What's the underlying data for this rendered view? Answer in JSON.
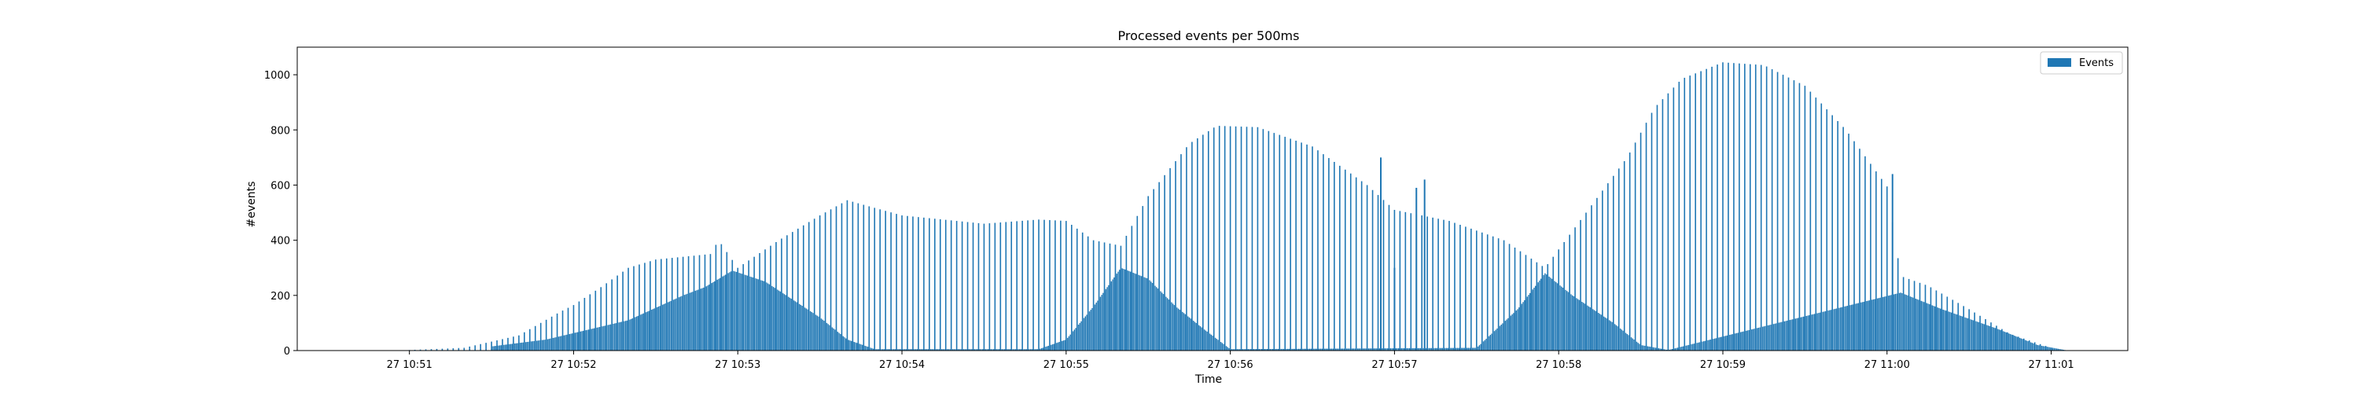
{
  "chart_data": {
    "type": "bar",
    "title": "Processed events per 500ms",
    "xlabel": "Time",
    "ylabel": "#events",
    "ylim": [
      0,
      1100
    ],
    "xlim": [
      "10:50:19",
      "11:01:28"
    ],
    "yticks": [
      0,
      200,
      400,
      600,
      800,
      1000
    ],
    "xticks": [
      {
        "value": "10:51:00",
        "label": "27 10:51"
      },
      {
        "value": "10:52:00",
        "label": "27 10:52"
      },
      {
        "value": "10:53:00",
        "label": "27 10:53"
      },
      {
        "value": "10:54:00",
        "label": "27 10:54"
      },
      {
        "value": "10:55:00",
        "label": "27 10:55"
      },
      {
        "value": "10:56:00",
        "label": "27 10:56"
      },
      {
        "value": "10:57:00",
        "label": "27 10:57"
      },
      {
        "value": "10:58:00",
        "label": "27 10:58"
      },
      {
        "value": "10:59:00",
        "label": "27 10:59"
      },
      {
        "value": "11:00:00",
        "label": "27 11:00"
      },
      {
        "value": "11:01:00",
        "label": "27 11:01"
      }
    ],
    "legend": {
      "placement": "upper-right",
      "entries": [
        "Events"
      ]
    },
    "grid": false,
    "color": "#1f77b4",
    "series": [
      {
        "name": "Events",
        "bar_interval_seconds": 2,
        "outline_points": [
          [
            "10:51:00",
            2
          ],
          [
            "10:51:20",
            10
          ],
          [
            "10:51:40",
            55
          ],
          [
            "10:51:55",
            140
          ],
          [
            "10:52:00",
            165
          ],
          [
            "10:52:10",
            230
          ],
          [
            "10:52:20",
            300
          ],
          [
            "10:52:30",
            330
          ],
          [
            "10:52:40",
            340
          ],
          [
            "10:52:50",
            350
          ],
          [
            "10:52:53",
            400
          ],
          [
            "10:53:00",
            300
          ],
          [
            "10:53:15",
            400
          ],
          [
            "10:53:30",
            490
          ],
          [
            "10:53:40",
            545
          ],
          [
            "10:54:00",
            490
          ],
          [
            "10:54:30",
            460
          ],
          [
            "10:54:50",
            475
          ],
          [
            "10:55:00",
            470
          ],
          [
            "10:55:10",
            400
          ],
          [
            "10:55:20",
            380
          ],
          [
            "10:55:30",
            560
          ],
          [
            "10:55:45",
            750
          ],
          [
            "10:55:55",
            815
          ],
          [
            "10:56:10",
            810
          ],
          [
            "10:56:30",
            740
          ],
          [
            "10:56:50",
            600
          ],
          [
            "10:57:00",
            510
          ],
          [
            "10:57:20",
            470
          ],
          [
            "10:57:40",
            400
          ],
          [
            "10:57:55",
            300
          ],
          [
            "10:58:10",
            500
          ],
          [
            "10:58:25",
            700
          ],
          [
            "10:58:35",
            880
          ],
          [
            "10:58:45",
            985
          ],
          [
            "10:59:00",
            1045
          ],
          [
            "10:59:15",
            1035
          ],
          [
            "10:59:30",
            960
          ],
          [
            "10:59:45",
            800
          ],
          [
            "11:00:00",
            595
          ],
          [
            "11:00:05",
            270
          ],
          [
            "11:00:15",
            235
          ],
          [
            "11:00:30",
            150
          ],
          [
            "11:00:45",
            60
          ],
          [
            "11:01:00",
            10
          ]
        ],
        "solid_points": [
          [
            "10:51:30",
            15
          ],
          [
            "10:51:50",
            40
          ],
          [
            "10:52:20",
            110
          ],
          [
            "10:52:40",
            200
          ],
          [
            "10:52:48",
            230
          ],
          [
            "10:52:58",
            290
          ],
          [
            "10:53:10",
            250
          ],
          [
            "10:53:30",
            120
          ],
          [
            "10:53:40",
            40
          ],
          [
            "10:53:50",
            5
          ],
          [
            "10:54:50",
            5
          ],
          [
            "10:55:00",
            40
          ],
          [
            "10:55:10",
            160
          ],
          [
            "10:55:20",
            300
          ],
          [
            "10:55:30",
            260
          ],
          [
            "10:55:40",
            160
          ],
          [
            "10:55:50",
            80
          ],
          [
            "10:56:00",
            5
          ],
          [
            "10:57:30",
            10
          ],
          [
            "10:57:45",
            150
          ],
          [
            "10:57:55",
            280
          ],
          [
            "10:58:05",
            200
          ],
          [
            "10:58:20",
            100
          ],
          [
            "10:58:30",
            20
          ],
          [
            "10:58:40",
            2
          ],
          [
            "11:00:05",
            210
          ],
          [
            "11:00:20",
            150
          ],
          [
            "11:00:40",
            80
          ],
          [
            "11:00:55",
            20
          ],
          [
            "11:01:05",
            2
          ]
        ],
        "spikes": [
          [
            "10:56:55",
            700
          ],
          [
            "10:57:00",
            300
          ],
          [
            "10:57:08",
            590
          ],
          [
            "10:57:11",
            620
          ],
          [
            "11:00:02",
            640
          ]
        ]
      }
    ]
  }
}
